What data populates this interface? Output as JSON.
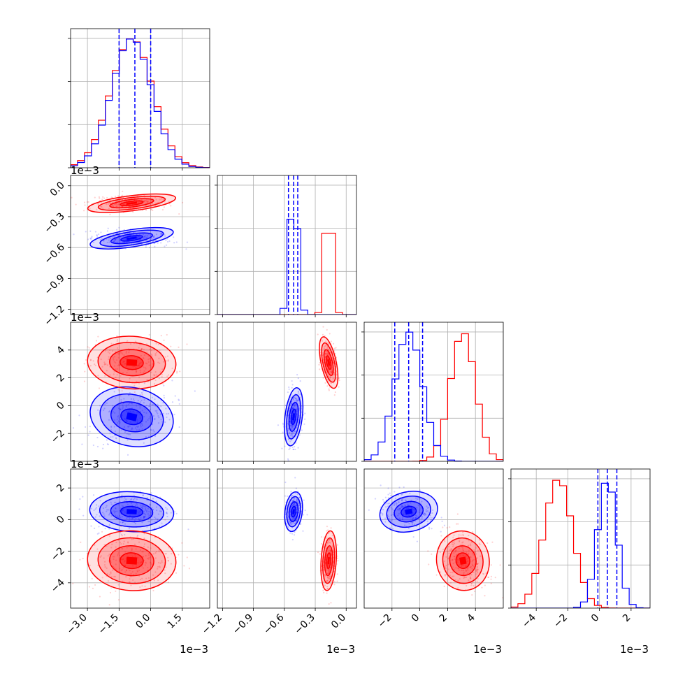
{
  "colors": {
    "series_a": "#0000ff",
    "series_b": "#ff0000",
    "grid": "#b0b0b0",
    "axis": "#000000"
  },
  "chart_data": {
    "type": "corner",
    "grid": true,
    "series_colors": [
      "#0000ff",
      "#ff0000"
    ],
    "parameters": [
      {
        "index": 0,
        "scale_label": "1e−3",
        "range": [
          -3.8,
          2.8
        ],
        "ticks": [
          -3.0,
          -1.5,
          0.0,
          1.5
        ],
        "tick_labels": [
          "−3.0",
          "−1.5",
          "0.0",
          "1.5"
        ],
        "blue": {
          "mean": -0.9,
          "sd": 0.95,
          "quantiles": [
            -1.5,
            -0.75,
            0.0
          ]
        },
        "red": {
          "mean": -0.9,
          "sd": 1.0
        }
      },
      {
        "index": 1,
        "scale_label": "1e−3",
        "range": [
          -1.25,
          0.1
        ],
        "ticks": [
          -1.2,
          -0.9,
          -0.6,
          -0.3,
          0.0
        ],
        "tick_labels": [
          "−1.2",
          "−0.9",
          "−0.6",
          "−0.3",
          "0.0"
        ],
        "blue": {
          "mean": -0.51,
          "sd": 0.04,
          "quantiles": [
            -0.56,
            -0.51,
            -0.47
          ]
        },
        "red": {
          "mean": -0.17,
          "sd": 0.035
        }
      },
      {
        "index": 2,
        "scale_label": "1e−3",
        "range": [
          -4.0,
          6.0
        ],
        "ticks": [
          -2,
          0,
          2,
          4
        ],
        "tick_labels": [
          "−2",
          "0",
          "2",
          "4"
        ],
        "blue": {
          "mean": -0.8,
          "sd": 1.0,
          "quantiles": [
            -1.8,
            -0.8,
            0.2
          ]
        },
        "red": {
          "mean": 3.1,
          "sd": 0.9
        }
      },
      {
        "index": 3,
        "scale_label": "1e−3",
        "range": [
          -5.6,
          3.2
        ],
        "ticks": [
          -4,
          -2,
          0,
          2
        ],
        "tick_labels": [
          "−4",
          "−2",
          "0",
          "2"
        ],
        "blue": {
          "mean": 0.5,
          "sd": 0.6,
          "quantiles": [
            -0.1,
            0.5,
            1.1
          ]
        },
        "red": {
          "mean": -2.6,
          "sd": 0.9
        }
      }
    ]
  }
}
